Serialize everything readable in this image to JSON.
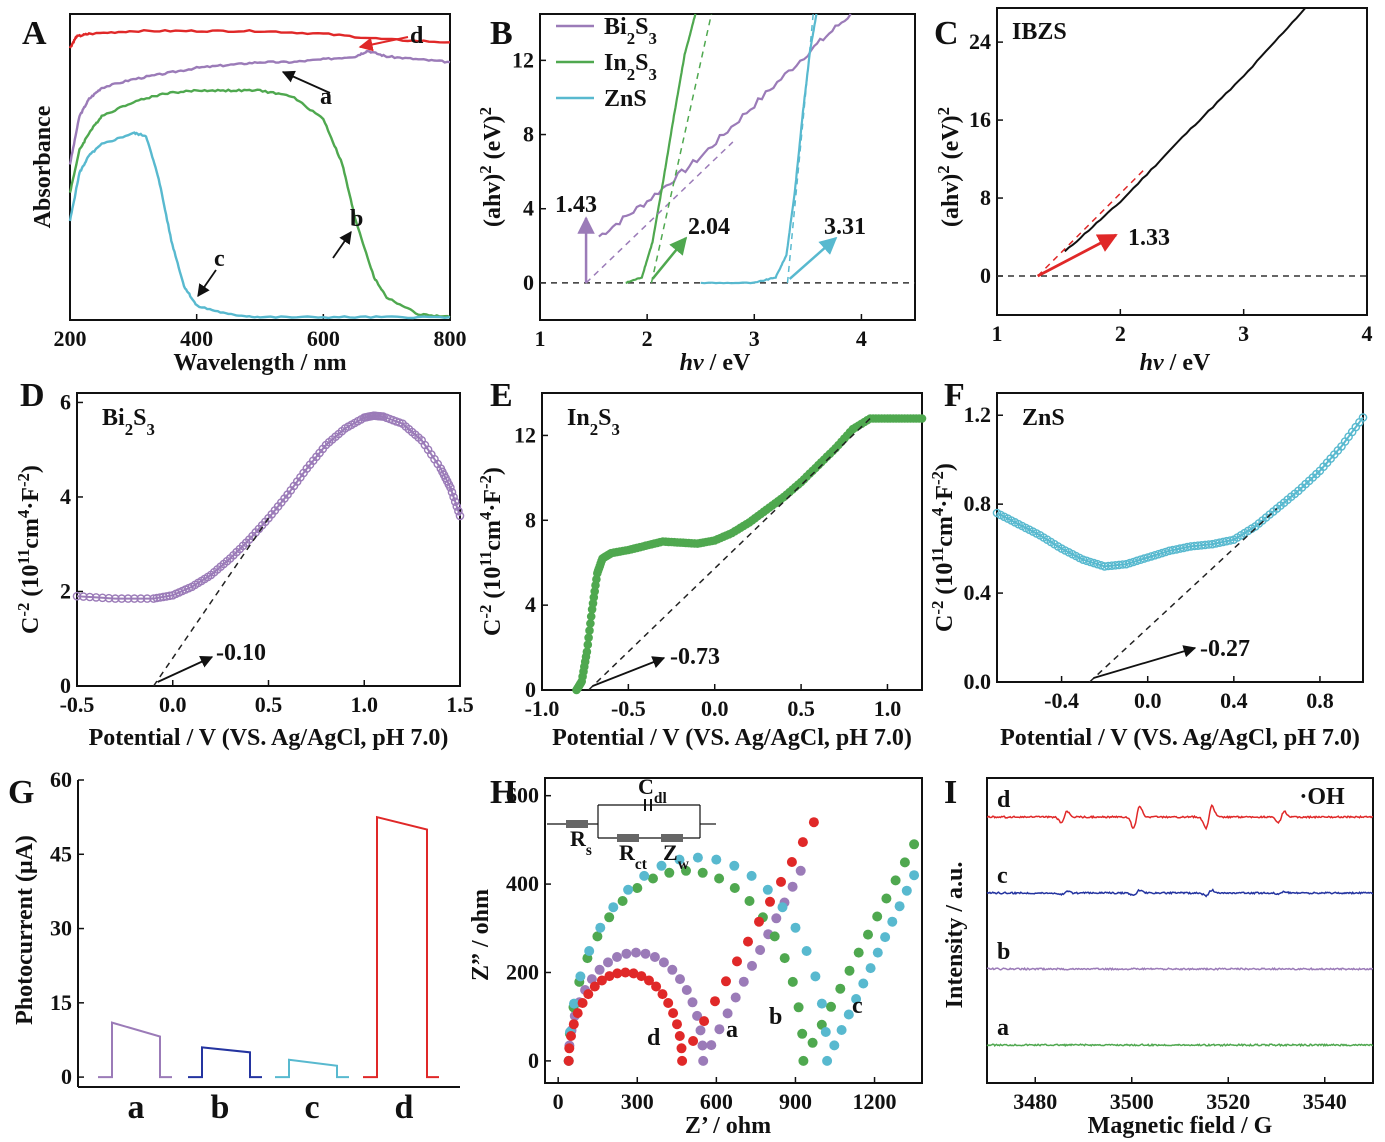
{
  "colors": {
    "purple": "#9b7bb8",
    "green": "#4fa84f",
    "cyan": "#58b9cf",
    "red": "#e02828",
    "blue": "#2434a0",
    "black": "#111111"
  },
  "panels": {
    "A": {
      "label": "A",
      "xlabel": "Wavelength / nm",
      "ylabel": "Absorbance",
      "curve_labels": [
        "a",
        "b",
        "c",
        "d"
      ]
    },
    "B": {
      "label": "B",
      "xlabel_italic": "hv",
      "xlabel_rest": " / eV",
      "ylabel": "(ahv)² (eV)²",
      "legend": [
        {
          "base": "Bi",
          "s1": "2",
          "mid": "S",
          "s2": "3"
        },
        {
          "base": "In",
          "s1": "2",
          "mid": "S",
          "s2": "3"
        },
        {
          "base": "ZnS",
          "s1": "",
          "mid": "",
          "s2": ""
        }
      ],
      "annotations": [
        "1.43",
        "2.04",
        "3.31"
      ]
    },
    "C": {
      "label": "C",
      "title": "IBZS",
      "xlabel_italic": "hv",
      "xlabel_rest": " / eV",
      "ylabel": "(ahv)² (eV)²",
      "annotations": [
        "1.33"
      ]
    },
    "D": {
      "label": "D",
      "title_base": "Bi",
      "title_s1": "2",
      "title_mid": "S",
      "title_s2": "3",
      "xlabel": "Potential / V (VS. Ag/AgCl, pH 7.0)",
      "ylabel": "C⁻² (10¹¹cm⁴·F⁻²)",
      "annotations": [
        "-0.10"
      ]
    },
    "E": {
      "label": "E",
      "title_base": "In",
      "title_s1": "2",
      "title_mid": "S",
      "title_s2": "3",
      "xlabel": "Potential / V (VS. Ag/AgCl, pH 7.0)",
      "ylabel": "C⁻² (10¹¹cm⁴·F⁻²)",
      "annotations": [
        "-0.73"
      ]
    },
    "F": {
      "label": "F",
      "title": "ZnS",
      "xlabel": "Potential / V (VS. Ag/AgCl, pH 7.0)",
      "ylabel": "C⁻² (10¹¹cm⁴·F⁻²)",
      "annotations": [
        "-0.27"
      ]
    },
    "G": {
      "label": "G",
      "ylabel": "Photocurrent (μA)"
    },
    "H": {
      "label": "H",
      "xlabel": "Z’ / ohm",
      "ylabel": "Z” / ohm",
      "circuit": {
        "cdl": "Cdl",
        "rs": "Rs",
        "rct": "Rct",
        "zw": "Zw"
      },
      "curve_labels": [
        "a",
        "b",
        "c",
        "d"
      ]
    },
    "I": {
      "label": "I",
      "xlabel": "Magnetic field / G",
      "ylabel": "Intensity / a.u.",
      "species": "·OH",
      "curve_labels": [
        "a",
        "b",
        "c",
        "d"
      ]
    }
  },
  "chart_data": [
    {
      "panel": "A",
      "type": "line",
      "xlim": [
        200,
        800
      ],
      "x_ticks": [
        200,
        400,
        600,
        800
      ],
      "series": [
        {
          "name": "a",
          "color": "purple",
          "x": [
            200,
            215,
            230,
            250,
            300,
            350,
            400,
            450,
            500,
            550,
            600,
            650,
            670,
            700,
            750,
            800
          ],
          "y": [
            0.55,
            0.72,
            0.78,
            0.82,
            0.85,
            0.87,
            0.89,
            0.9,
            0.91,
            0.91,
            0.92,
            0.93,
            0.95,
            0.93,
            0.92,
            0.91
          ]
        },
        {
          "name": "b",
          "color": "green",
          "x": [
            200,
            215,
            230,
            250,
            300,
            350,
            400,
            450,
            500,
            550,
            600,
            630,
            650,
            680,
            700,
            750,
            800
          ],
          "y": [
            0.45,
            0.6,
            0.66,
            0.72,
            0.77,
            0.8,
            0.81,
            0.81,
            0.81,
            0.79,
            0.71,
            0.55,
            0.36,
            0.15,
            0.08,
            0.02,
            0.01
          ]
        },
        {
          "name": "c",
          "color": "cyan",
          "x": [
            200,
            215,
            230,
            250,
            300,
            320,
            340,
            360,
            380,
            400,
            450,
            500,
            600,
            700,
            800
          ],
          "y": [
            0.35,
            0.52,
            0.58,
            0.62,
            0.66,
            0.65,
            0.5,
            0.28,
            0.12,
            0.05,
            0.02,
            0.01,
            0.01,
            0.01,
            0.01
          ]
        },
        {
          "name": "d",
          "color": "red",
          "x": [
            200,
            210,
            230,
            300,
            400,
            500,
            600,
            700,
            800
          ],
          "y": [
            0.96,
            1.0,
            1.01,
            1.02,
            1.02,
            1.02,
            1.01,
            0.99,
            0.98
          ]
        }
      ]
    },
    {
      "panel": "B",
      "type": "line",
      "xlim": [
        1,
        4.5
      ],
      "ylim": [
        -2,
        14.5
      ],
      "x_ticks": [
        1,
        2,
        3,
        4
      ],
      "y_ticks": [
        0,
        4,
        8,
        12
      ],
      "series": [
        {
          "name": "Bi2S3",
          "color": "purple",
          "x": [
            1.55,
            2.0,
            2.5,
            3.0,
            3.5,
            3.9
          ],
          "y": [
            2.5,
            4.4,
            6.8,
            9.6,
            12.4,
            14.5
          ]
        },
        {
          "name": "In2S3",
          "color": "green",
          "x": [
            1.8,
            1.95,
            2.05,
            2.15,
            2.25,
            2.35,
            2.45
          ],
          "y": [
            0,
            0.3,
            2.2,
            5.5,
            9.0,
            12.3,
            14.5
          ]
        },
        {
          "name": "ZnS",
          "color": "cyan",
          "x": [
            2.5,
            3.0,
            3.2,
            3.3,
            3.38,
            3.45,
            3.52,
            3.58
          ],
          "y": [
            0,
            0,
            0.3,
            1.5,
            5.0,
            9.0,
            12.5,
            14.5
          ]
        }
      ],
      "tangents": [
        [
          1.43,
          0,
          2.8,
          7.6
        ],
        [
          2.04,
          0,
          2.6,
          14.5
        ],
        [
          3.31,
          0,
          3.55,
          14.5
        ]
      ]
    },
    {
      "panel": "C",
      "type": "line",
      "xlim": [
        1,
        4
      ],
      "ylim": [
        -4,
        27.5
      ],
      "x_ticks": [
        1,
        2,
        3,
        4
      ],
      "y_ticks": [
        0,
        8,
        16,
        24
      ],
      "series": [
        {
          "name": "IBZS",
          "color": "black",
          "x": [
            1.55,
            2.0,
            2.5,
            3.0,
            3.5
          ],
          "y": [
            2.5,
            7.6,
            14.2,
            20.5,
            27.5
          ]
        }
      ],
      "tangents": [
        [
          1.33,
          0,
          2.2,
          11.0
        ]
      ]
    },
    {
      "panel": "D",
      "type": "scatter",
      "xlim": [
        -0.5,
        1.5
      ],
      "ylim": [
        0,
        6.2
      ],
      "x_ticks": [
        -0.5,
        0.0,
        0.5,
        1.0,
        1.5
      ],
      "y_ticks": [
        0,
        2,
        4,
        6
      ],
      "series": [
        {
          "name": "Bi2S3",
          "color": "purple",
          "x": [
            -0.5,
            -0.3,
            -0.1,
            0.0,
            0.1,
            0.2,
            0.3,
            0.4,
            0.5,
            0.6,
            0.7,
            0.8,
            0.9,
            1.0,
            1.05,
            1.1,
            1.2,
            1.3,
            1.4,
            1.45,
            1.5
          ],
          "y": [
            1.9,
            1.85,
            1.85,
            1.92,
            2.1,
            2.35,
            2.7,
            3.1,
            3.55,
            4.05,
            4.6,
            5.1,
            5.45,
            5.68,
            5.72,
            5.7,
            5.55,
            5.2,
            4.6,
            4.2,
            3.6
          ]
        }
      ],
      "tangents": [
        [
          -0.1,
          0,
          0.5,
          3.55
        ]
      ]
    },
    {
      "panel": "E",
      "type": "scatter",
      "xlim": [
        -1.0,
        1.2
      ],
      "ylim": [
        0,
        14
      ],
      "x_ticks": [
        -1.0,
        -0.5,
        0.0,
        0.5,
        1.0
      ],
      "y_ticks": [
        0,
        4,
        8,
        12
      ],
      "series": [
        {
          "name": "In2S3",
          "color": "green",
          "x": [
            -0.8,
            -0.77,
            -0.74,
            -0.71,
            -0.68,
            -0.65,
            -0.6,
            -0.5,
            -0.4,
            -0.3,
            -0.2,
            -0.1,
            0.0,
            0.1,
            0.2,
            0.3,
            0.4,
            0.5,
            0.6,
            0.7,
            0.8,
            0.9,
            1.0,
            1.1,
            1.2
          ],
          "y": [
            0,
            0.4,
            1.8,
            3.8,
            5.5,
            6.2,
            6.45,
            6.6,
            6.8,
            7.0,
            6.95,
            6.9,
            7.05,
            7.4,
            7.9,
            8.5,
            9.1,
            9.8,
            10.6,
            11.4,
            12.3,
            12.8,
            12.8,
            12.8,
            12.8
          ]
        }
      ],
      "tangents": [
        [
          -0.73,
          0,
          0.9,
          12.8
        ]
      ]
    },
    {
      "panel": "F",
      "type": "scatter",
      "xlim": [
        -0.7,
        1.0
      ],
      "ylim": [
        0,
        1.3
      ],
      "x_ticks": [
        -0.4,
        0.0,
        0.4,
        0.8
      ],
      "y_ticks": [
        0.0,
        0.4,
        0.8,
        1.2
      ],
      "series": [
        {
          "name": "ZnS",
          "color": "cyan",
          "x": [
            -0.7,
            -0.6,
            -0.5,
            -0.4,
            -0.3,
            -0.2,
            -0.1,
            0.0,
            0.1,
            0.2,
            0.3,
            0.4,
            0.5,
            0.6,
            0.7,
            0.8,
            0.9,
            1.0
          ],
          "y": [
            0.76,
            0.71,
            0.66,
            0.6,
            0.55,
            0.52,
            0.53,
            0.56,
            0.59,
            0.61,
            0.62,
            0.64,
            0.7,
            0.78,
            0.86,
            0.95,
            1.06,
            1.19
          ]
        }
      ],
      "tangents": [
        [
          -0.27,
          0,
          0.6,
          0.78
        ]
      ]
    },
    {
      "panel": "G",
      "type": "line",
      "ylim": [
        -2,
        60
      ],
      "y_ticks": [
        0,
        15,
        30,
        45,
        60
      ],
      "categories": [
        "a",
        "b",
        "c",
        "d"
      ],
      "series": [
        {
          "name": "a",
          "color": "purple",
          "on": 11.0,
          "off": 8.2
        },
        {
          "name": "b",
          "color": "blue",
          "on": 6.0,
          "off": 5.0
        },
        {
          "name": "c",
          "color": "cyan",
          "on": 3.5,
          "off": 2.3
        },
        {
          "name": "d",
          "color": "red",
          "on": 52.5,
          "off": 50.0
        }
      ]
    },
    {
      "panel": "H",
      "type": "scatter",
      "xlim": [
        -50,
        1380
      ],
      "ylim": [
        -50,
        640
      ],
      "x_ticks": [
        0,
        300,
        600,
        900,
        1200
      ],
      "y_ticks": [
        0,
        200,
        400,
        600
      ],
      "series": [
        {
          "name": "a",
          "color": "purple",
          "r0": 40,
          "rct": 510,
          "peak": 245,
          "tail_end": [
            920,
            430
          ]
        },
        {
          "name": "b",
          "color": "green",
          "r0": 40,
          "rct": 890,
          "peak": 430,
          "tail_end": [
            1350,
            490
          ]
        },
        {
          "name": "c",
          "color": "cyan",
          "r0": 40,
          "rct": 980,
          "peak": 460,
          "tail_end": [
            1350,
            420
          ]
        },
        {
          "name": "d",
          "color": "red",
          "r0": 40,
          "rct": 430,
          "peak": 200,
          "tail_end": [
            970,
            540
          ]
        }
      ]
    },
    {
      "panel": "I",
      "type": "line",
      "xlim": [
        3470,
        3550
      ],
      "x_ticks": [
        3480,
        3500,
        3520,
        3540
      ],
      "series": [
        {
          "name": "a",
          "color": "green",
          "amp": 0.0
        },
        {
          "name": "b",
          "color": "purple",
          "amp": 0.0
        },
        {
          "name": "c",
          "color": "blue",
          "amp": 0.25
        },
        {
          "name": "d",
          "color": "red",
          "amp": 1.0
        }
      ],
      "peaks": [
        3486,
        3501,
        3516,
        3531
      ],
      "peak_heights": [
        0.5,
        1.0,
        1.0,
        0.5
      ]
    }
  ]
}
